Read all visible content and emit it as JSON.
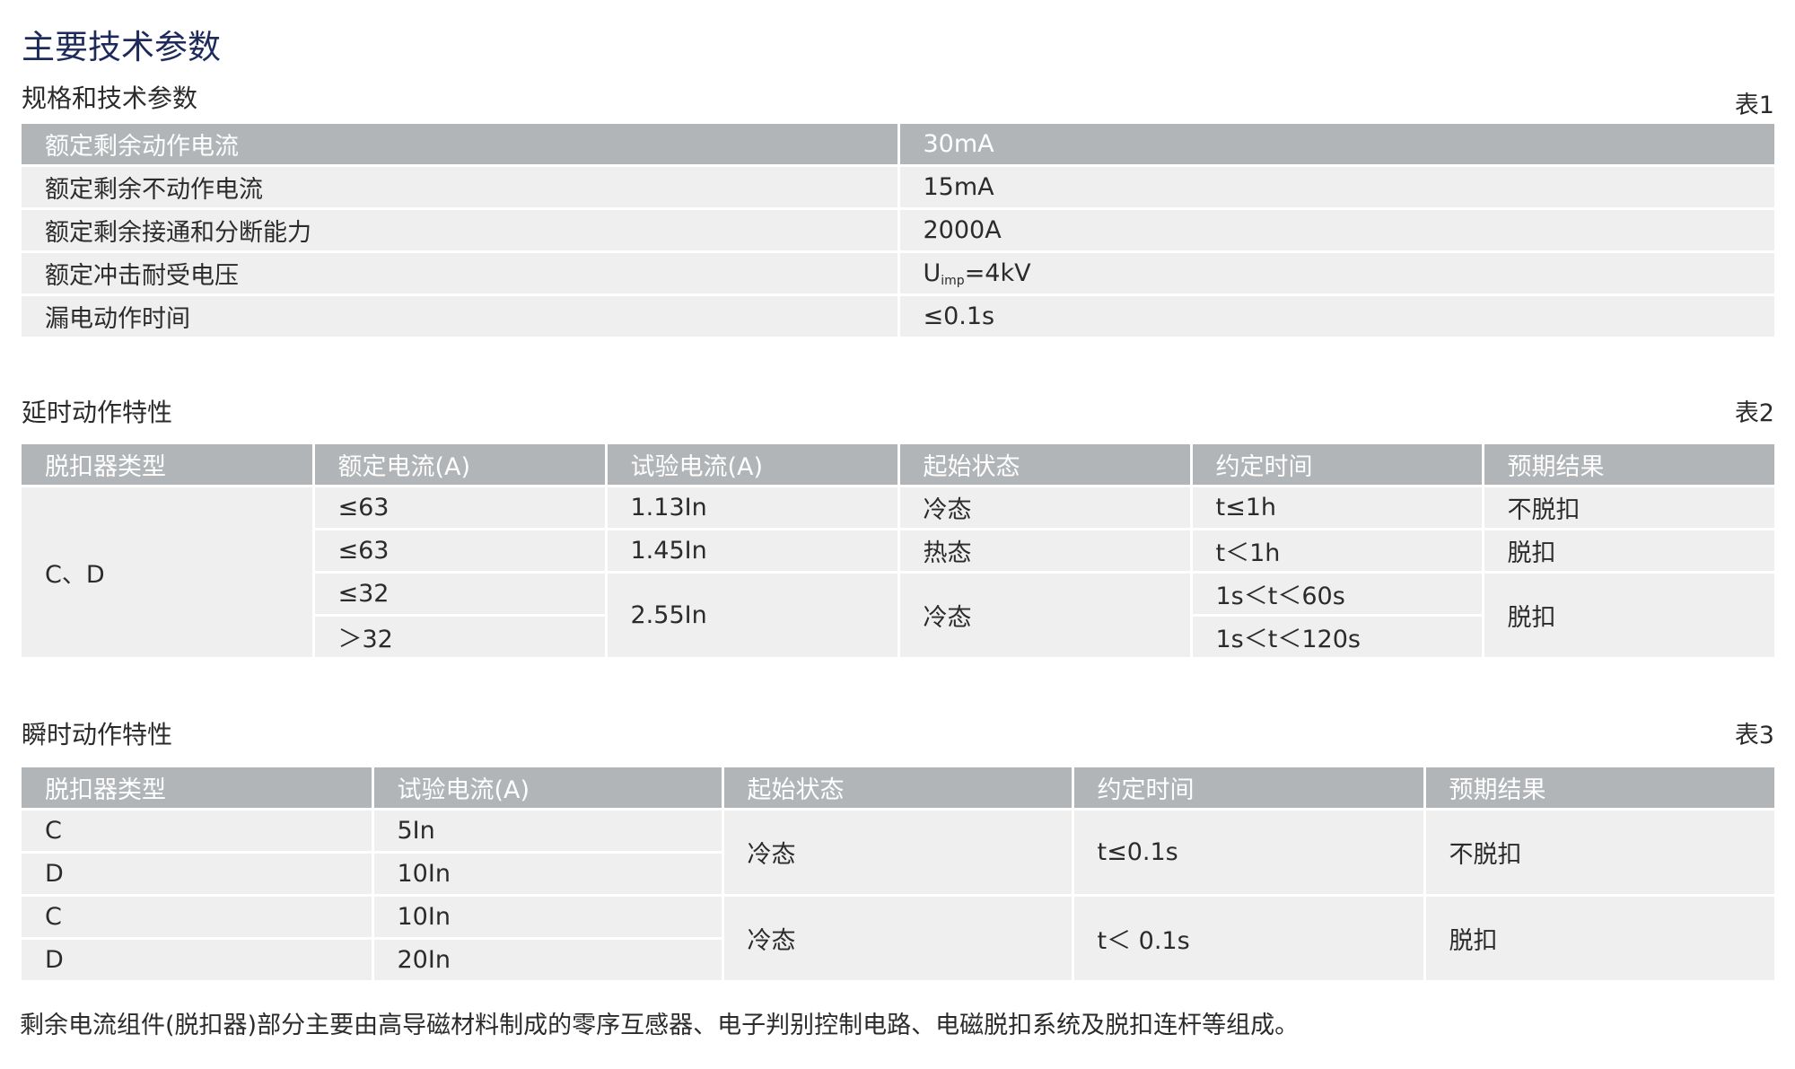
{
  "title": "主要技术参数",
  "table1": {
    "caption": "规格和技术参数",
    "number": "表1",
    "rows": [
      {
        "param": "额定剩余动作电流",
        "value": "30mA"
      },
      {
        "param": "额定剩余不动作电流",
        "value": "15mA"
      },
      {
        "param": "额定剩余接通和分断能力",
        "value": "2000A"
      },
      {
        "param": "额定冲击耐受电压",
        "value_prefix": "U",
        "value_sub": "imp",
        "value_suffix": "=4kV"
      },
      {
        "param": "漏电动作时间",
        "value": "≤0.1s"
      }
    ]
  },
  "table2": {
    "caption": "延时动作特性",
    "number": "表2",
    "headers": [
      "脱扣器类型",
      "额定电流(A)",
      "试验电流(A)",
      "起始状态",
      "约定时间",
      "预期结果"
    ],
    "type": "C、D",
    "rated": [
      "≤63",
      "≤63",
      "≤32",
      "＞32"
    ],
    "test": [
      "1.13In",
      "1.45In",
      "2.55In"
    ],
    "state": [
      "冷态",
      "热态",
      "冷态"
    ],
    "time": [
      "t≤1h",
      "t＜1h",
      "1s＜t＜60s",
      "1s＜t＜120s"
    ],
    "result": [
      "不脱扣",
      "脱扣",
      "脱扣"
    ]
  },
  "table3": {
    "caption": "瞬时动作特性",
    "number": "表3",
    "headers": [
      "脱扣器类型",
      "试验电流(A)",
      "起始状态",
      "约定时间",
      "预期结果"
    ],
    "type": [
      "C",
      "D",
      "C",
      "D"
    ],
    "test": [
      "5In",
      "10In",
      "10In",
      "20In"
    ],
    "state": [
      "冷态",
      "冷态"
    ],
    "time": [
      "t≤0.1s",
      "t＜ 0.1s"
    ],
    "result": [
      "不脱扣",
      "脱扣"
    ]
  },
  "footnote": "剩余电流组件(脱扣器)部分主要由高导磁材料制成的零序互感器、电子判别控制电路、电磁脱扣系统及脱扣连杆等组成。"
}
